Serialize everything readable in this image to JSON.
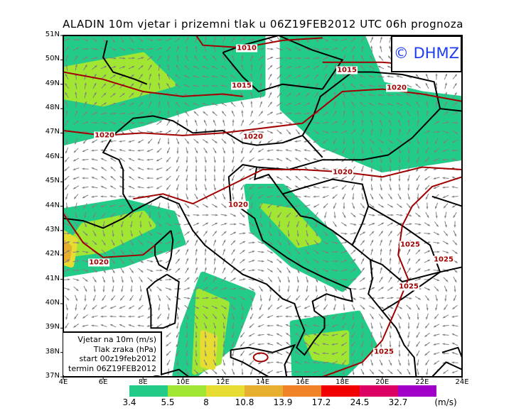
{
  "title": "ALADIN 10m vjetar i prizemni tlak u 06Z19FEB2012 UTC 06h prognoza",
  "watermark": "© DHMZ",
  "legend": {
    "line1": "Vjetar na 10m (m/s)",
    "line2": "Tlak zraka (hPa)",
    "line3": "start 00z19feb2012",
    "line4": "termin 06Z19FEB2012"
  },
  "lat_labels": [
    "51N",
    "50N",
    "49N",
    "48N",
    "47N",
    "46N",
    "45N",
    "44N",
    "43N",
    "42N",
    "41N",
    "40N",
    "39N",
    "38N",
    "37N"
  ],
  "lon_labels": [
    "4E",
    "6E",
    "8E",
    "10E",
    "12E",
    "14E",
    "16E",
    "18E",
    "20E",
    "22E",
    "24E"
  ],
  "colorbar": {
    "thresholds": [
      "3.4",
      "5.5",
      "8",
      "10.8",
      "13.9",
      "17.2",
      "24.5",
      "32.7"
    ],
    "unit": "(m/s)",
    "colors": [
      "#22cc88",
      "#a0e632",
      "#e6dc32",
      "#e6af2d",
      "#f08228",
      "#f00000",
      "#dc0064",
      "#a000c8"
    ]
  },
  "isobar_labels": [
    "1010",
    "1015",
    "1015",
    "1020",
    "1020",
    "1020",
    "1020",
    "1020",
    "1020",
    "1025",
    "1025",
    "1025",
    "1025"
  ],
  "colors": {
    "isobar": "#a00000",
    "wind_arrow": "#808080",
    "coast": "#000000"
  }
}
